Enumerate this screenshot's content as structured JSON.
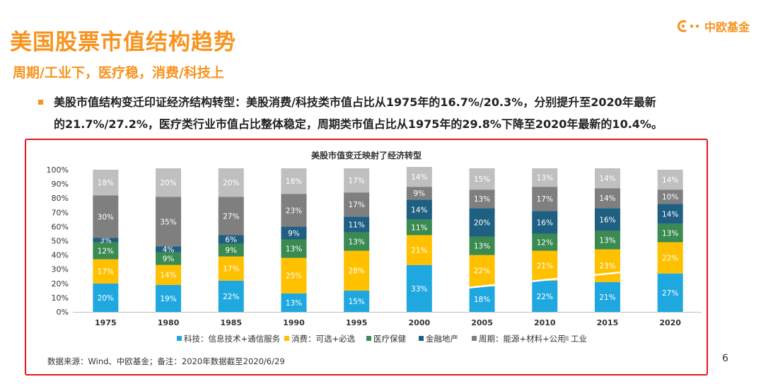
{
  "header": {
    "title": "美国股票市值结构趋势",
    "subtitle": "周期/工业下，医疗稳，消费/科技上",
    "logo_text": "中欧基金",
    "logo_icon": "zhongou-logo-icon"
  },
  "bullet": {
    "line1": "美股市值结构变迁印证经济结构转型：美股消费/科技类市值占比从1975年的16.7%/20.3%，分别提升至2020年最新",
    "line2": "的21.7%/27.2%，医疗类行业市值占比整体稳定，周期类市值占比从1975年的29.8%下降至2020年最新的10.4%。"
  },
  "source_note": "数据来源：Wind、中欧基金；备注：2020年数据截至2020/6/29",
  "page_number": "6",
  "colors": {
    "accent": "#f7931e",
    "frame": "#e8141b",
    "tech": "#1fa8e0",
    "consumer": "#ffc000",
    "health": "#3a8a52",
    "finance": "#1f5f82",
    "cyclical": "#7f7f7f",
    "industrial": "#bfbfbf"
  },
  "chart_data": {
    "type": "bar",
    "stacked": true,
    "title": "美股市值变迁映射了经济转型",
    "categories": [
      "1975",
      "1980",
      "1985",
      "1990",
      "1995",
      "2000",
      "2005",
      "2010",
      "2015",
      "2020"
    ],
    "ylim": [
      0,
      100
    ],
    "yticks": [
      "0%",
      "10%",
      "20%",
      "30%",
      "40%",
      "50%",
      "60%",
      "70%",
      "80%",
      "90%",
      "100%"
    ],
    "series": [
      {
        "name": "科技：信息技术+通信服务",
        "key": "tech",
        "values": [
          20,
          19,
          22,
          13,
          15,
          33,
          18,
          22,
          21,
          27
        ]
      },
      {
        "name": "消费：可选+必选",
        "key": "consumer",
        "values": [
          17,
          14,
          17,
          25,
          28,
          21,
          22,
          21,
          23,
          22
        ]
      },
      {
        "name": "医疗保健",
        "key": "health",
        "values": [
          12,
          9,
          9,
          13,
          13,
          11,
          13,
          12,
          13,
          13
        ]
      },
      {
        "name": "金融地产",
        "key": "finance",
        "values": [
          3,
          4,
          6,
          9,
          11,
          14,
          20,
          16,
          16,
          14
        ]
      },
      {
        "name": "周期：能源+材料+公用",
        "key": "cyclical",
        "values": [
          30,
          35,
          27,
          23,
          17,
          9,
          13,
          17,
          14,
          10
        ]
      },
      {
        "name": "工业",
        "key": "industrial",
        "values": [
          18,
          20,
          20,
          18,
          17,
          14,
          15,
          13,
          14,
          14
        ]
      }
    ],
    "annotation": {
      "type": "trend-arrow",
      "from_category": "2005",
      "to_category": "2020"
    }
  }
}
